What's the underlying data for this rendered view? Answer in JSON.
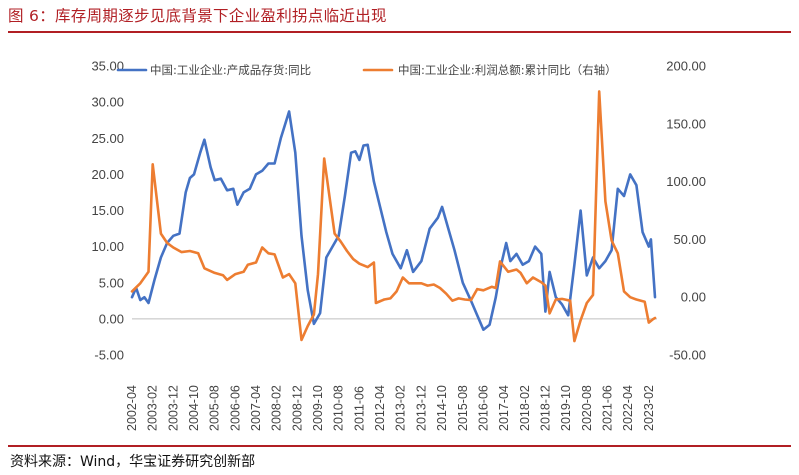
{
  "header": {
    "title": "图 6：库存周期逐步见底背景下企业盈利拐点临近出现"
  },
  "footer": {
    "source": "资料来源：Wind，华宝证券研究创新部"
  },
  "colors": {
    "accent": "#b11f24",
    "series_blue": "#4472c4",
    "series_orange": "#ed7d31",
    "axis": "#bfbfbf"
  },
  "chart_data": {
    "type": "line",
    "title": "",
    "x_range": [
      "2002-04",
      "2023-05"
    ],
    "x_tick_labels": [
      "2002-04",
      "2003-02",
      "2003-12",
      "2004-10",
      "2005-08",
      "2006-06",
      "2007-04",
      "2008-02",
      "2008-12",
      "2009-10",
      "2010-08",
      "2011-06",
      "2012-04",
      "2013-02",
      "2013-12",
      "2014-10",
      "2015-08",
      "2016-06",
      "2017-04",
      "2018-02",
      "2018-12",
      "2019-10",
      "2020-08",
      "2021-06",
      "2022-04",
      "2023-02"
    ],
    "y_left": {
      "min": -5,
      "max": 35,
      "ticks": [
        "-5.00",
        "0.00",
        "5.00",
        "10.00",
        "15.00",
        "20.00",
        "25.00",
        "30.00",
        "35.00"
      ]
    },
    "y_right": {
      "min": -50,
      "max": 200,
      "ticks": [
        "-50.00",
        "0.00",
        "50.00",
        "100.00",
        "150.00",
        "200.00"
      ]
    },
    "legend_position": "top",
    "series": [
      {
        "name": "中国:工业企业:产成品存货:同比",
        "axis": "left",
        "points": [
          [
            "2002-04",
            3.0
          ],
          [
            "2002-06",
            4.3
          ],
          [
            "2002-08",
            2.6
          ],
          [
            "2002-10",
            3.0
          ],
          [
            "2002-12",
            2.2
          ],
          [
            "2003-03",
            5.5
          ],
          [
            "2003-06",
            8.5
          ],
          [
            "2003-09",
            10.5
          ],
          [
            "2003-12",
            11.5
          ],
          [
            "2004-03",
            11.8
          ],
          [
            "2004-06",
            17.5
          ],
          [
            "2004-08",
            19.5
          ],
          [
            "2004-10",
            20.0
          ],
          [
            "2005-01",
            23.0
          ],
          [
            "2005-03",
            24.8
          ],
          [
            "2005-06",
            21.0
          ],
          [
            "2005-08",
            19.2
          ],
          [
            "2005-11",
            19.4
          ],
          [
            "2006-02",
            17.8
          ],
          [
            "2006-05",
            18.0
          ],
          [
            "2006-07",
            15.8
          ],
          [
            "2006-10",
            17.5
          ],
          [
            "2007-01",
            18.0
          ],
          [
            "2007-04",
            20.0
          ],
          [
            "2007-07",
            20.5
          ],
          [
            "2007-10",
            21.5
          ],
          [
            "2008-01",
            21.5
          ],
          [
            "2008-04",
            25.0
          ],
          [
            "2008-08",
            28.7
          ],
          [
            "2008-11",
            23.0
          ],
          [
            "2009-02",
            11.5
          ],
          [
            "2009-05",
            4.0
          ],
          [
            "2009-08",
            -0.7
          ],
          [
            "2009-11",
            0.8
          ],
          [
            "2010-02",
            8.5
          ],
          [
            "2010-05",
            10.0
          ],
          [
            "2010-08",
            11.5
          ],
          [
            "2010-11",
            17.0
          ],
          [
            "2011-02",
            23.0
          ],
          [
            "2011-04",
            23.2
          ],
          [
            "2011-06",
            22.0
          ],
          [
            "2011-08",
            24.0
          ],
          [
            "2011-10",
            24.1
          ],
          [
            "2012-01",
            19.0
          ],
          [
            "2012-04",
            15.5
          ],
          [
            "2012-07",
            12.0
          ],
          [
            "2012-10",
            9.0
          ],
          [
            "2013-02",
            7.0
          ],
          [
            "2013-05",
            9.5
          ],
          [
            "2013-08",
            6.5
          ],
          [
            "2013-12",
            8.0
          ],
          [
            "2014-04",
            12.5
          ],
          [
            "2014-08",
            14.0
          ],
          [
            "2014-10",
            15.5
          ],
          [
            "2015-01",
            12.5
          ],
          [
            "2015-04",
            9.5
          ],
          [
            "2015-08",
            5.0
          ],
          [
            "2015-12",
            2.5
          ],
          [
            "2016-03",
            0.5
          ],
          [
            "2016-06",
            -1.5
          ],
          [
            "2016-09",
            -0.8
          ],
          [
            "2016-12",
            3.0
          ],
          [
            "2017-03",
            8.0
          ],
          [
            "2017-05",
            10.5
          ],
          [
            "2017-07",
            8.0
          ],
          [
            "2017-10",
            9.0
          ],
          [
            "2018-01",
            7.5
          ],
          [
            "2018-04",
            8.0
          ],
          [
            "2018-07",
            10.0
          ],
          [
            "2018-10",
            9.0
          ],
          [
            "2018-12",
            1.0
          ],
          [
            "2019-02",
            6.5
          ],
          [
            "2019-05",
            3.0
          ],
          [
            "2019-08",
            2.0
          ],
          [
            "2019-11",
            0.5
          ],
          [
            "2020-02",
            7.5
          ],
          [
            "2020-05",
            15.0
          ],
          [
            "2020-08",
            6.0
          ],
          [
            "2020-11",
            8.5
          ],
          [
            "2021-02",
            7.0
          ],
          [
            "2021-05",
            8.0
          ],
          [
            "2021-08",
            9.5
          ],
          [
            "2021-11",
            18.0
          ],
          [
            "2022-02",
            17.0
          ],
          [
            "2022-05",
            20.0
          ],
          [
            "2022-08",
            18.5
          ],
          [
            "2022-11",
            12.0
          ],
          [
            "2023-02",
            10.0
          ],
          [
            "2023-03",
            11.0
          ],
          [
            "2023-05",
            3.0
          ]
        ]
      },
      {
        "name": "中国:工业企业:利润总额:累计同比（右轴）",
        "axis": "right",
        "points": [
          [
            "2002-04",
            5.0
          ],
          [
            "2002-08",
            12.0
          ],
          [
            "2002-12",
            22.0
          ],
          [
            "2003-02",
            115.0
          ],
          [
            "2003-06",
            55.0
          ],
          [
            "2003-09",
            47.0
          ],
          [
            "2003-12",
            43.0
          ],
          [
            "2004-04",
            39.0
          ],
          [
            "2004-08",
            40.0
          ],
          [
            "2004-12",
            38.0
          ],
          [
            "2005-03",
            25.0
          ],
          [
            "2005-08",
            21.0
          ],
          [
            "2005-12",
            19.0
          ],
          [
            "2006-02",
            15.0
          ],
          [
            "2006-06",
            20.0
          ],
          [
            "2006-10",
            22.0
          ],
          [
            "2006-12",
            28.0
          ],
          [
            "2007-04",
            30.0
          ],
          [
            "2007-07",
            43.0
          ],
          [
            "2007-10",
            38.0
          ],
          [
            "2008-01",
            37.0
          ],
          [
            "2008-05",
            17.0
          ],
          [
            "2008-08",
            20.0
          ],
          [
            "2008-11",
            12.0
          ],
          [
            "2009-02",
            -37.0
          ],
          [
            "2009-05",
            -25.0
          ],
          [
            "2009-08",
            -15.0
          ],
          [
            "2009-10",
            20.0
          ],
          [
            "2010-01",
            120.0
          ],
          [
            "2010-06",
            55.0
          ],
          [
            "2010-09",
            48.0
          ],
          [
            "2010-12",
            40.0
          ],
          [
            "2011-03",
            33.0
          ],
          [
            "2011-06",
            29.0
          ],
          [
            "2011-10",
            26.0
          ],
          [
            "2012-01",
            30.0
          ],
          [
            "2012-02",
            -5.0
          ],
          [
            "2012-06",
            -2.0
          ],
          [
            "2012-09",
            -1.0
          ],
          [
            "2012-12",
            5.0
          ],
          [
            "2013-03",
            17.0
          ],
          [
            "2013-06",
            12.0
          ],
          [
            "2013-12",
            12.0
          ],
          [
            "2014-03",
            10.0
          ],
          [
            "2014-06",
            11.0
          ],
          [
            "2014-09",
            8.0
          ],
          [
            "2014-12",
            3.0
          ],
          [
            "2015-03",
            -3.0
          ],
          [
            "2015-06",
            -1.0
          ],
          [
            "2015-09",
            -2.0
          ],
          [
            "2015-12",
            -2.5
          ],
          [
            "2016-03",
            7.0
          ],
          [
            "2016-06",
            6.0
          ],
          [
            "2016-10",
            9.0
          ],
          [
            "2016-12",
            8.0
          ],
          [
            "2017-02",
            31.0
          ],
          [
            "2017-06",
            22.0
          ],
          [
            "2017-10",
            24.0
          ],
          [
            "2017-12",
            21.0
          ],
          [
            "2018-03",
            12.0
          ],
          [
            "2018-06",
            17.0
          ],
          [
            "2018-10",
            13.0
          ],
          [
            "2018-12",
            10.0
          ],
          [
            "2019-02",
            -14.0
          ],
          [
            "2019-05",
            -2.0
          ],
          [
            "2019-08",
            -1.5
          ],
          [
            "2019-12",
            -3.0
          ],
          [
            "2020-02",
            -38.0
          ],
          [
            "2020-05",
            -20.0
          ],
          [
            "2020-08",
            -5.0
          ],
          [
            "2020-11",
            2.0
          ],
          [
            "2021-02",
            178.0
          ],
          [
            "2021-05",
            83.0
          ],
          [
            "2021-08",
            49.0
          ],
          [
            "2021-11",
            38.0
          ],
          [
            "2022-02",
            5.0
          ],
          [
            "2022-05",
            0.0
          ],
          [
            "2022-08",
            -2.0
          ],
          [
            "2022-12",
            -4.0
          ],
          [
            "2023-02",
            -22.0
          ],
          [
            "2023-04",
            -19.0
          ],
          [
            "2023-05",
            -18.0
          ]
        ]
      }
    ]
  }
}
